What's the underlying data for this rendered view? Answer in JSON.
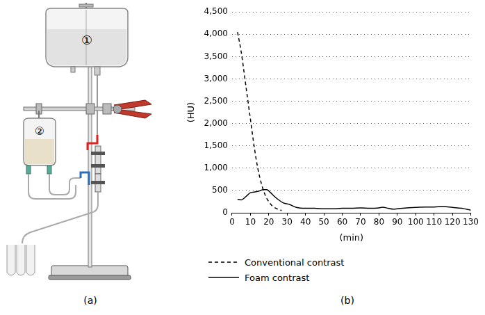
{
  "diagram": {
    "panel_label": "(a)",
    "labels": [
      "①",
      "②"
    ]
  },
  "chart_data": {
    "type": "line",
    "panel_label": "(b)",
    "x_label": "(min)",
    "y_label": "(HU)",
    "xlim": [
      0,
      130
    ],
    "xticks": [
      0,
      10,
      20,
      30,
      40,
      50,
      60,
      70,
      80,
      90,
      100,
      110,
      120,
      130
    ],
    "ylim": [
      0,
      4500
    ],
    "yticks": [
      0,
      500,
      1000,
      1500,
      2000,
      2500,
      3000,
      3500,
      4000,
      4500
    ],
    "grid": true,
    "legend": "bottom",
    "series": [
      {
        "name": "Conventional contrast",
        "color": "#000000",
        "line_style": "dashed",
        "x": [
          3,
          5,
          8,
          10,
          12,
          14,
          16,
          18,
          20,
          22,
          25,
          27
        ],
        "values": [
          4050,
          3600,
          2700,
          2100,
          1500,
          1000,
          650,
          400,
          250,
          150,
          80,
          50
        ]
      },
      {
        "name": "Foam contrast",
        "color": "#000000",
        "line_style": "solid",
        "x": [
          3,
          5,
          8,
          10,
          13,
          15,
          17,
          19,
          21,
          23,
          25,
          28,
          31,
          35,
          40,
          45,
          50,
          55,
          60,
          65,
          70,
          75,
          80,
          82,
          85,
          88,
          90,
          95,
          100,
          105,
          110,
          115,
          120,
          125,
          130
        ],
        "values": [
          300,
          290,
          380,
          450,
          470,
          490,
          520,
          520,
          450,
          370,
          300,
          220,
          190,
          120,
          100,
          100,
          90,
          90,
          100,
          100,
          110,
          100,
          110,
          125,
          100,
          80,
          90,
          110,
          120,
          130,
          130,
          140,
          120,
          100,
          60
        ]
      }
    ]
  }
}
